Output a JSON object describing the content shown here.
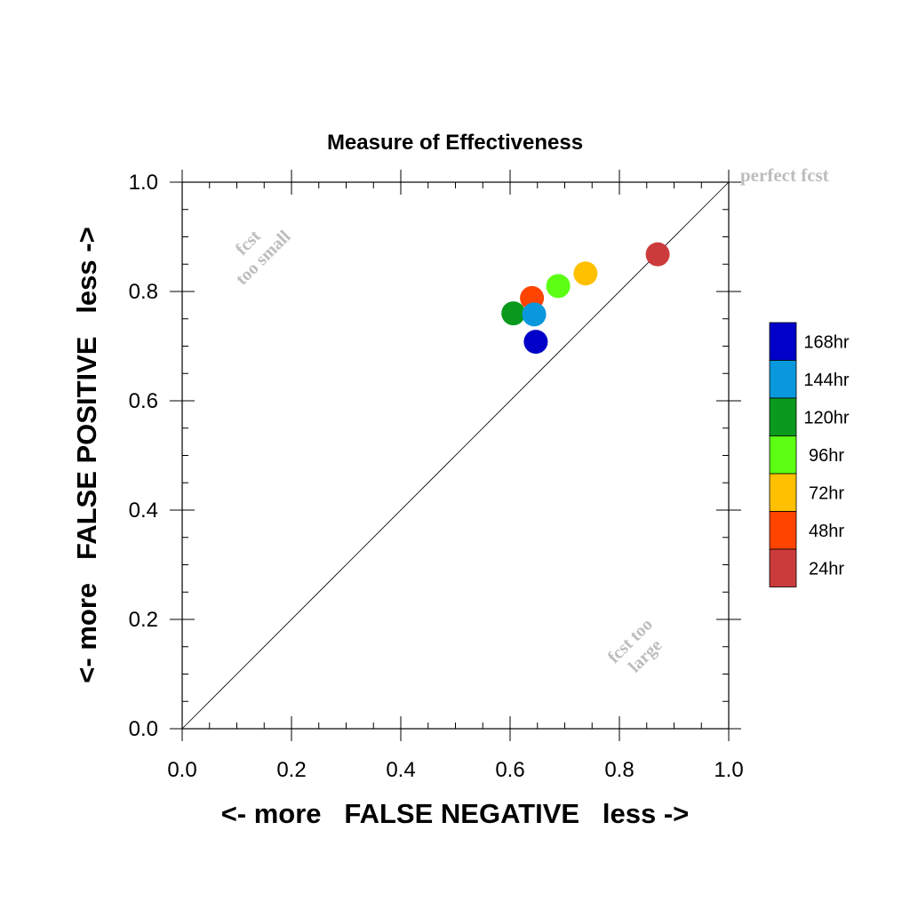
{
  "chart_data": {
    "type": "scatter",
    "title": "Measure of Effectiveness",
    "xlabel": "<- more   FALSE NEGATIVE   less ->",
    "ylabel": "<- more   FALSE POSITIVE   less ->",
    "xlim": [
      0.0,
      1.0
    ],
    "ylim": [
      0.0,
      1.0
    ],
    "x_ticks": [
      "0.0",
      "0.2",
      "0.4",
      "0.6",
      "0.8",
      "1.0"
    ],
    "y_ticks": [
      "0.0",
      "0.2",
      "0.4",
      "0.6",
      "0.8",
      "1.0"
    ],
    "grid": false,
    "legend_position": "right",
    "diagonal_line": {
      "from": [
        0.0,
        0.0
      ],
      "to": [
        1.0,
        1.0
      ]
    },
    "annotations": {
      "perfect": "perfect fcst",
      "small_line1": "fcst",
      "small_line2": "too small",
      "large_line1": "fcst too",
      "large_line2": "large"
    },
    "series": [
      {
        "name": "24hr",
        "color": "#cc3b3b",
        "x": 0.87,
        "y": 0.868
      },
      {
        "name": "48hr",
        "color": "#ff4400",
        "x": 0.64,
        "y": 0.788
      },
      {
        "name": "72hr",
        "color": "#ffc000",
        "x": 0.738,
        "y": 0.833
      },
      {
        "name": "96hr",
        "color": "#5cff14",
        "x": 0.688,
        "y": 0.81
      },
      {
        "name": "120hr",
        "color": "#0a9a1e",
        "x": 0.606,
        "y": 0.76
      },
      {
        "name": "144hr",
        "color": "#0a98dc",
        "x": 0.644,
        "y": 0.758
      },
      {
        "name": "168hr",
        "color": "#0000c8",
        "x": 0.647,
        "y": 0.708
      }
    ],
    "legend_order": [
      "168hr",
      "144hr",
      "120hr",
      "96hr",
      "72hr",
      "48hr",
      "24hr"
    ]
  }
}
